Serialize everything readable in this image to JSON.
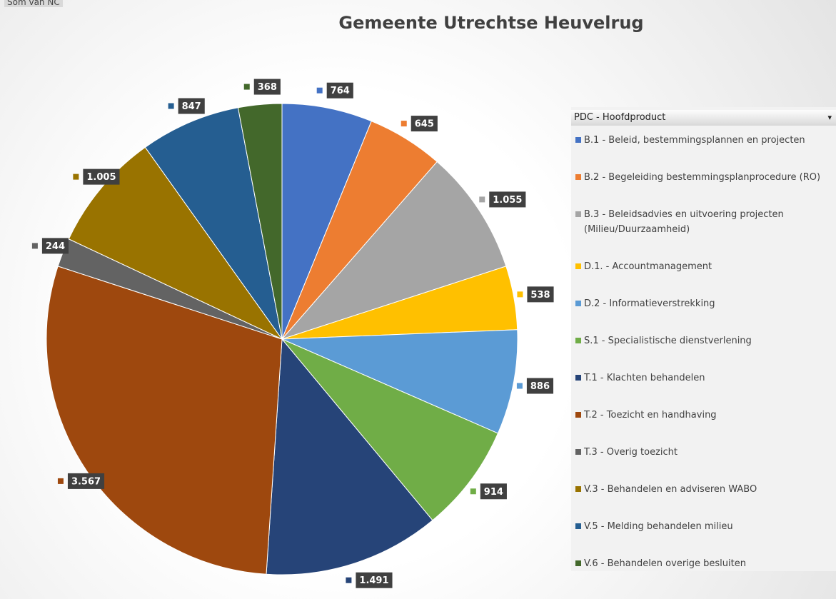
{
  "chart_data": {
    "type": "pie",
    "title": "Gemeente Utrechtse Heuvelrug",
    "field_button": "Som van NC",
    "legend_title": "PDC - Hoofdproduct",
    "legend": "right",
    "categories": [
      "B.1 - Beleid, bestemmingsplannen en projecten",
      "B.2 - Begeleiding bestemmingsplanprocedure (RO)",
      "B.3 - Beleidsadvies en uitvoering projecten (Milieu/Duurzaamheid)",
      "D.1. - Accountmanagement",
      "D.2 - Informatieverstrekking",
      "S.1 - Specialistische dienstverlening",
      "T.1 - Klachten behandelen",
      "T.2 - Toezicht en handhaving",
      "T.3 - Overig toezicht",
      "V.3 - Behandelen en adviseren WABO",
      "V.5 - Melding behandelen milieu",
      "V.6 - Behandelen overige besluiten"
    ],
    "values": [
      764,
      645,
      1055,
      538,
      886,
      914,
      1491,
      3567,
      244,
      1005,
      847,
      368
    ],
    "value_labels": [
      "764",
      "645",
      "1.055",
      "538",
      "886",
      "914",
      "1.491",
      "3.567",
      "244",
      "1.005",
      "847",
      "368"
    ],
    "colors": [
      "#4472c4",
      "#ed7d31",
      "#a5a5a5",
      "#ffc000",
      "#5b9bd5",
      "#70ad47",
      "#264478",
      "#9e480e",
      "#636363",
      "#997300",
      "#255e91",
      "#43682b"
    ]
  }
}
